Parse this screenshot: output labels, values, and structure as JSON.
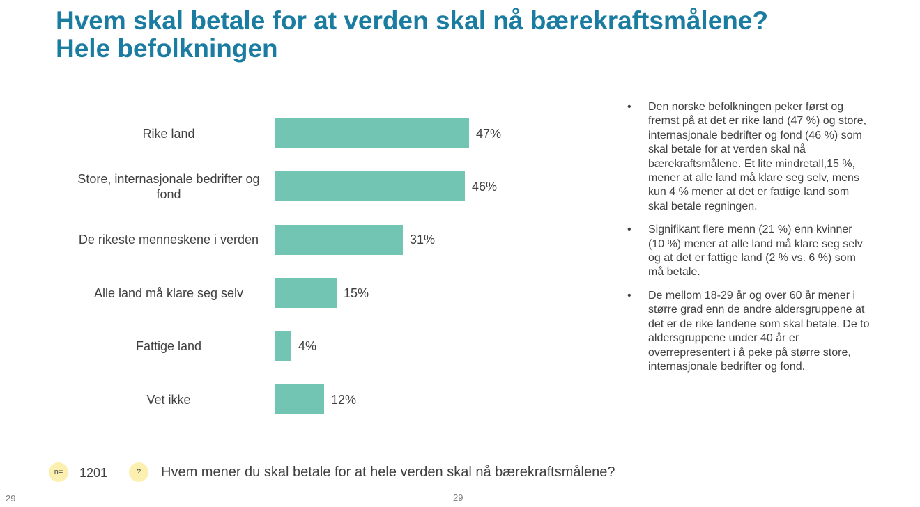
{
  "title": {
    "line1": "Hvem skal betale for at verden skal nå bærekraftsmålene?",
    "line2": "Hele befolkningen"
  },
  "chart_data": {
    "type": "bar",
    "orientation": "horizontal",
    "categories": [
      "Rike land",
      "Store, internasjonale bedrifter og fond",
      "De rikeste menneskene i verden",
      "Alle land må klare seg selv",
      "Fattige land",
      "Vet ikke"
    ],
    "values": [
      47,
      46,
      31,
      15,
      4,
      12
    ],
    "value_labels": [
      "47%",
      "46%",
      "31%",
      "15%",
      "4%",
      "12%"
    ],
    "title": "",
    "xlabel": "",
    "ylabel": "",
    "xlim": [
      0,
      47
    ],
    "grid": false,
    "color": "#72c4b3"
  },
  "notes": [
    "Den norske befolkningen peker først og fremst på at det er rike land (47 %) og store, internasjonale bedrifter og fond (46 %) som skal betale for at verden skal nå bærekraftsmålene. Et lite mindretall,15 %, mener at alle land må klare seg selv, mens kun 4 % mener at det er fattige land som skal betale regningen.",
    "Signifikant flere menn (21 %) enn kvinner (10 %) mener at alle land må klare seg selv og at det er fattige land (2 % vs. 6 %) som må betale.",
    "De mellom 18-29 år og over 60 år mener i større grad enn de andre aldersgruppene at det er de rike landene som skal betale. De to aldersgruppene under 40 år er overrepresentert i å peke på større store, internasjonale bedrifter og fond."
  ],
  "bullet_symbol": "•",
  "footer": {
    "n_badge": "n=",
    "n_value": "1201",
    "question_badge": "?",
    "question": "Hvem mener du skal betale for at hele verden skal nå bærekraftsmålene?",
    "page_left": "29",
    "page_center": "29"
  },
  "colors": {
    "title": "#1a7ca0",
    "bar": "#72c4b3",
    "badge": "#fbf0b0"
  }
}
